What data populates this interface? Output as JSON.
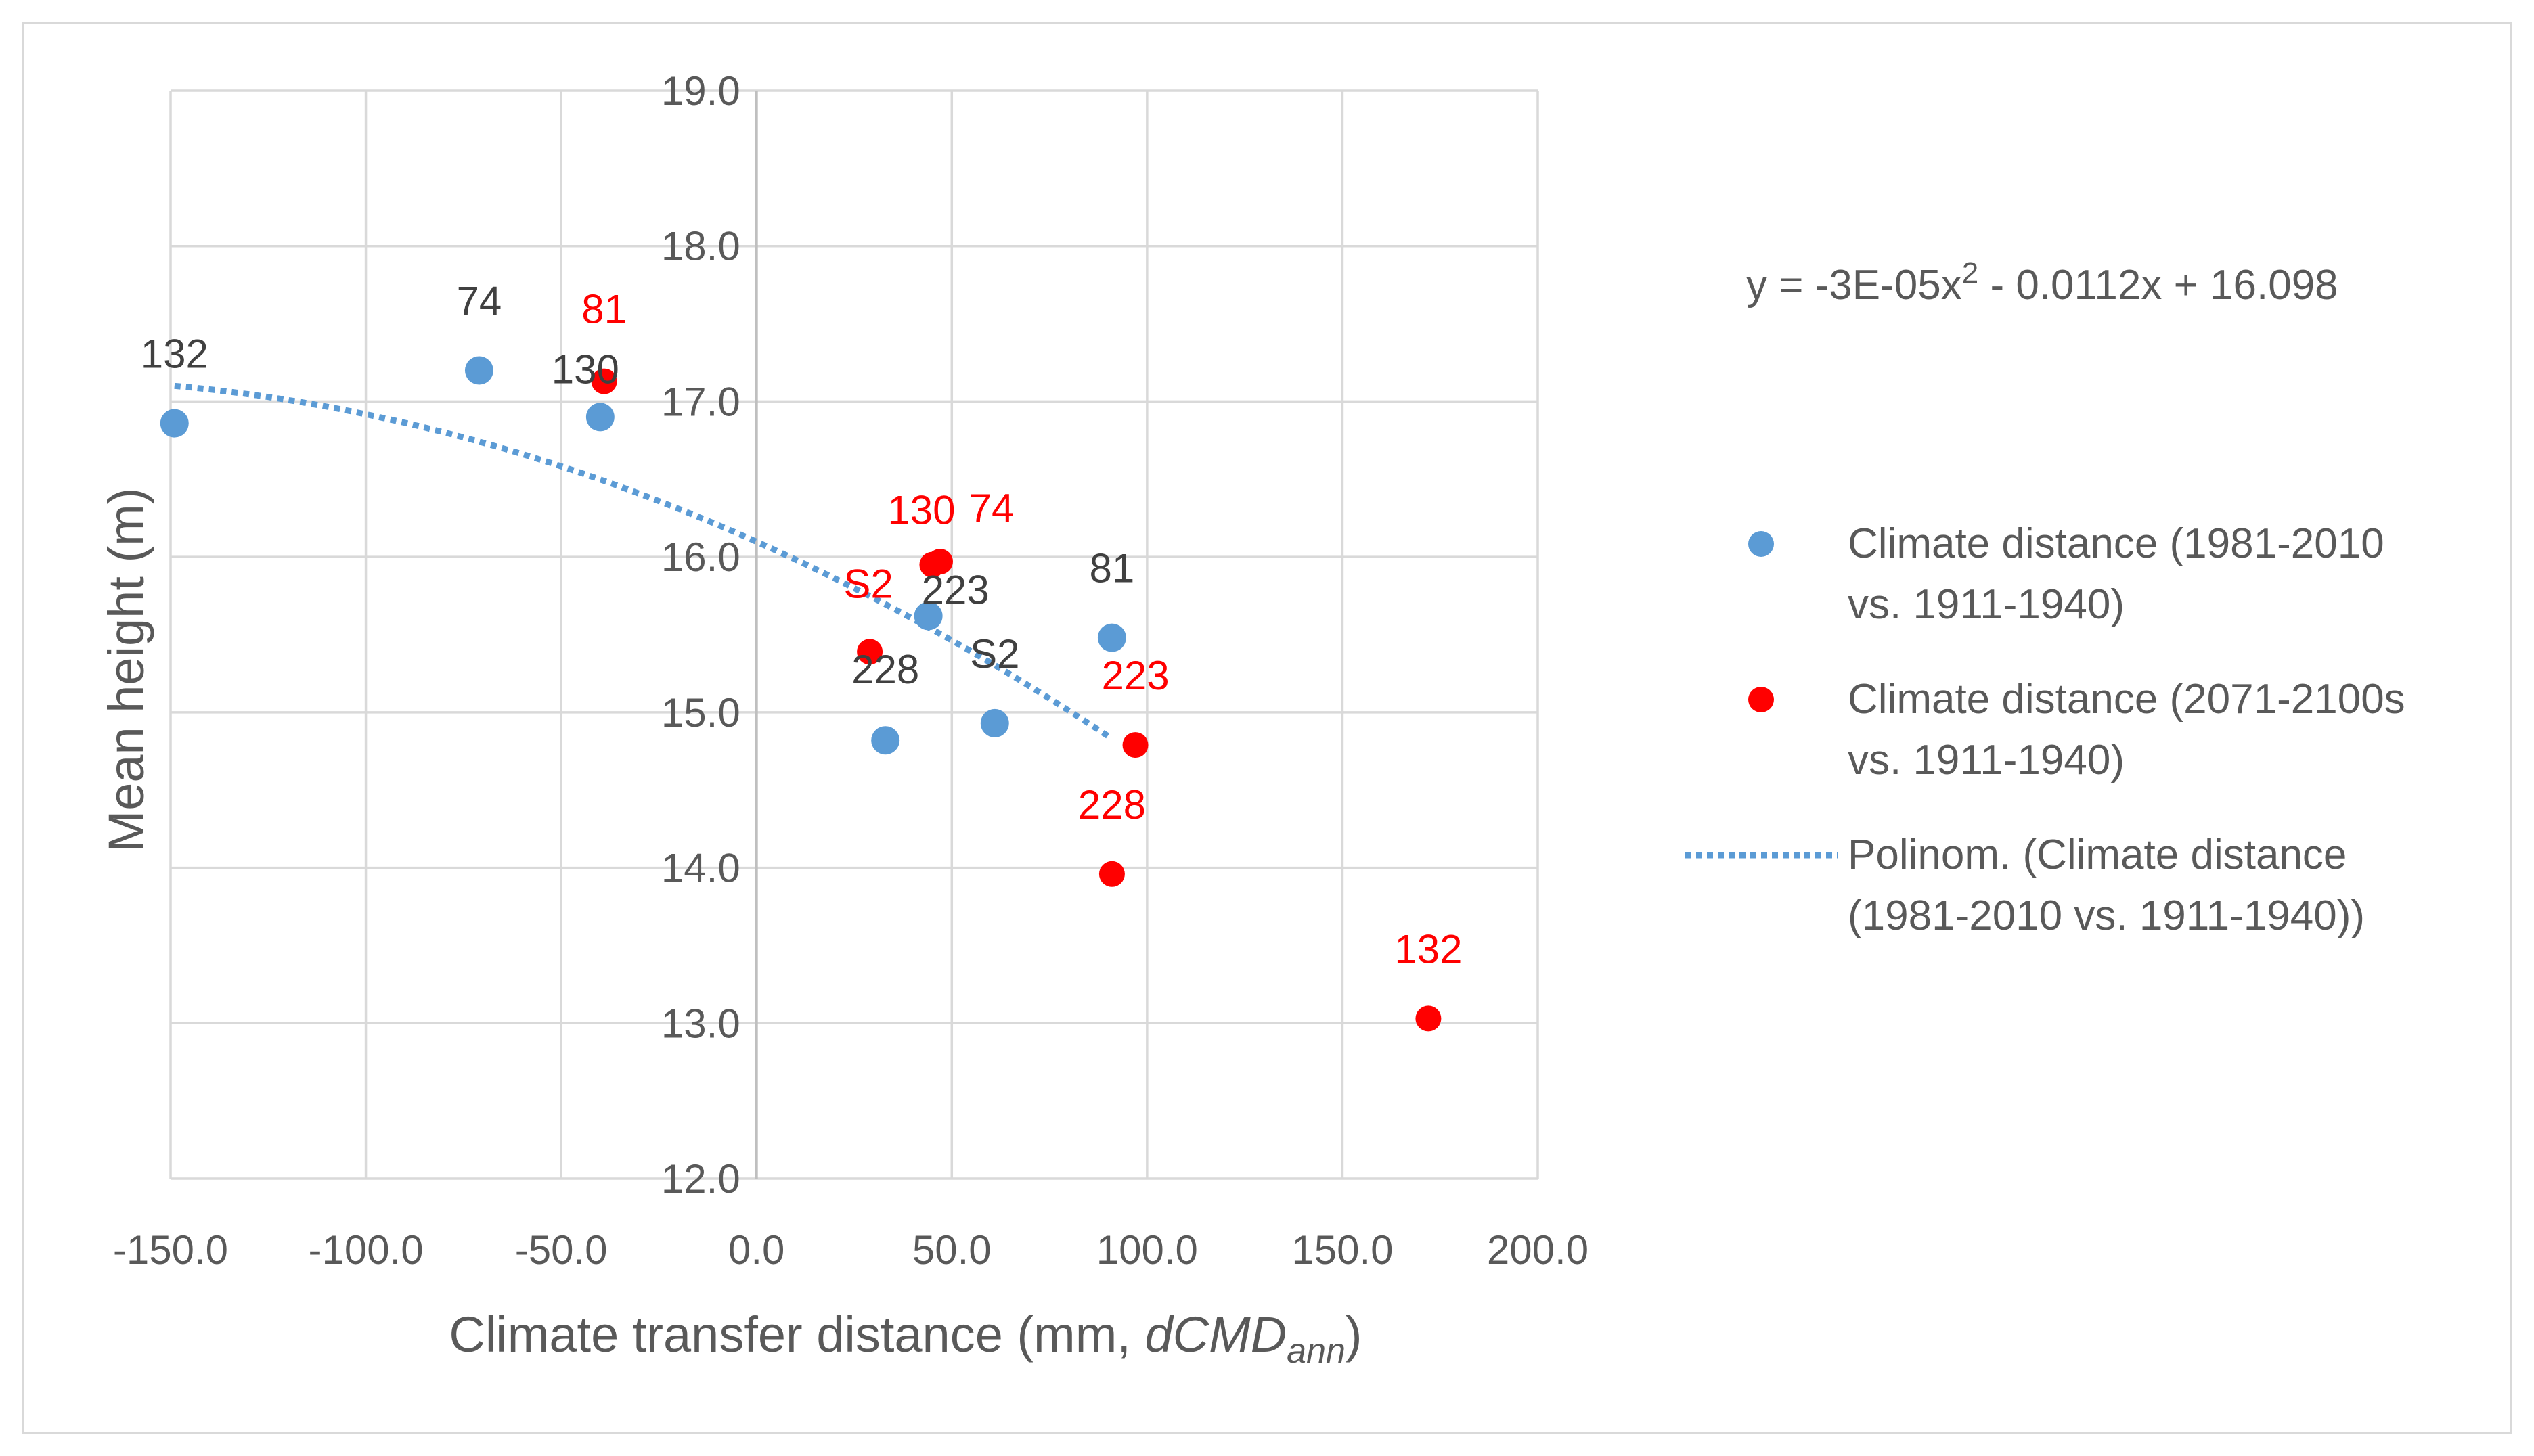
{
  "chart_data": {
    "type": "scatter",
    "title": "",
    "xlabel": "Climate transfer distance (mm, ",
    "xlabel_var": "dCMD",
    "xlabel_sub": "ann",
    "xlabel_close": ")",
    "ylabel": "Mean height (m)",
    "xlim": [
      -150,
      200
    ],
    "ylim": [
      12,
      19
    ],
    "x_ticks": [
      -150,
      -100,
      -50,
      0,
      50,
      100,
      150,
      200
    ],
    "y_ticks": [
      12,
      13,
      14,
      15,
      16,
      17,
      18,
      19
    ],
    "x_tick_labels": [
      "-150.0",
      "-100.0",
      "-50.0",
      "0.0",
      "50.0",
      "100.0",
      "150.0",
      "200.0"
    ],
    "y_tick_labels": [
      "12.0",
      "13.0",
      "14.0",
      "15.0",
      "16.0",
      "17.0",
      "18.0",
      "19.0"
    ],
    "grid": true,
    "series": [
      {
        "name": "Climate distance (1981-2010 vs. 1911-1940)",
        "legend_lines": [
          "Climate distance (1981-2010",
          "vs. 1911-1940)"
        ],
        "color": "#5b9bd5",
        "label_color": "#404040",
        "points": [
          {
            "x": -149,
            "y": 16.86,
            "label": "132"
          },
          {
            "x": -71,
            "y": 17.2,
            "label": "74"
          },
          {
            "x": -40,
            "y": 16.9,
            "label": "130"
          },
          {
            "x": 44,
            "y": 15.62,
            "label": "223"
          },
          {
            "x": 91,
            "y": 15.48,
            "label": "81"
          },
          {
            "x": 33,
            "y": 14.82,
            "label": "228"
          },
          {
            "x": 61,
            "y": 14.93,
            "label": "S2"
          }
        ]
      },
      {
        "name": "Climate distance (2071-2100s vs. 1911-1940)",
        "legend_lines": [
          "Climate distance (2071-2100s",
          "vs. 1911-1940)"
        ],
        "color": "#ff0000",
        "label_color": "#ff0000",
        "points": [
          {
            "x": -39,
            "y": 17.13,
            "label": "81"
          },
          {
            "x": 45,
            "y": 15.95,
            "label": "130"
          },
          {
            "x": 47,
            "y": 15.97,
            "label": "74"
          },
          {
            "x": 29,
            "y": 15.39,
            "label": "S2"
          },
          {
            "x": 97,
            "y": 14.79,
            "label": "223"
          },
          {
            "x": 91,
            "y": 13.96,
            "label": "228"
          },
          {
            "x": 172,
            "y": 13.03,
            "label": "132"
          }
        ]
      }
    ],
    "trendline": {
      "name": "Polinom. (Climate distance (1981-2010 vs. 1911-1940))",
      "legend_lines": [
        "Polinom. (Climate distance",
        "(1981-2010 vs. 1911-1940))"
      ],
      "color": "#5b9bd5",
      "style": "dotted",
      "x_range": [
        -149,
        91
      ],
      "coefficients": {
        "a": -3e-05,
        "b": -0.0112,
        "c": 16.098
      },
      "equation_text": "y = -3E-05x",
      "equation_sup": "2",
      "equation_rest": " - 0.0112x + 16.098"
    }
  }
}
